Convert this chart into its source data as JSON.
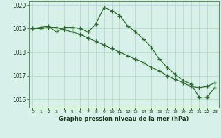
{
  "line1_x": [
    0,
    1,
    2,
    3,
    4,
    5,
    6,
    7,
    8,
    9,
    10,
    11,
    12,
    13,
    14,
    15,
    16,
    17,
    18,
    19,
    20,
    21,
    22,
    23
  ],
  "line1_y": [
    1019.0,
    1019.05,
    1019.1,
    1018.85,
    1019.05,
    1019.05,
    1019.0,
    1018.85,
    1019.2,
    1019.9,
    1019.75,
    1019.55,
    1019.1,
    1018.85,
    1018.55,
    1018.2,
    1017.7,
    1017.35,
    1017.05,
    1016.8,
    1016.65,
    1016.1,
    1016.1,
    1016.5
  ],
  "line2_x": [
    0,
    1,
    2,
    3,
    4,
    5,
    6,
    7,
    8,
    9,
    10,
    11,
    12,
    13,
    14,
    15,
    16,
    17,
    18,
    19,
    20,
    21,
    22,
    23
  ],
  "line2_y": [
    1019.0,
    1019.0,
    1019.05,
    1019.05,
    1018.95,
    1018.85,
    1018.75,
    1018.6,
    1018.45,
    1018.3,
    1018.15,
    1018.0,
    1017.85,
    1017.7,
    1017.55,
    1017.35,
    1017.2,
    1017.0,
    1016.85,
    1016.7,
    1016.55,
    1016.5,
    1016.55,
    1016.7
  ],
  "line_color": "#2d6a2d",
  "bg_color": "#d8f0ea",
  "grid_color": "#b0d8c0",
  "xlabel": "Graphe pression niveau de la mer (hPa)",
  "xlim": [
    -0.5,
    23.5
  ],
  "ylim": [
    1015.65,
    1020.15
  ],
  "yticks": [
    1016,
    1017,
    1018,
    1019,
    1020
  ],
  "xticks": [
    0,
    1,
    2,
    3,
    4,
    5,
    6,
    7,
    8,
    9,
    10,
    11,
    12,
    13,
    14,
    15,
    16,
    17,
    18,
    19,
    20,
    21,
    22,
    23
  ],
  "marker": "+",
  "markersize": 4,
  "linewidth": 0.9
}
